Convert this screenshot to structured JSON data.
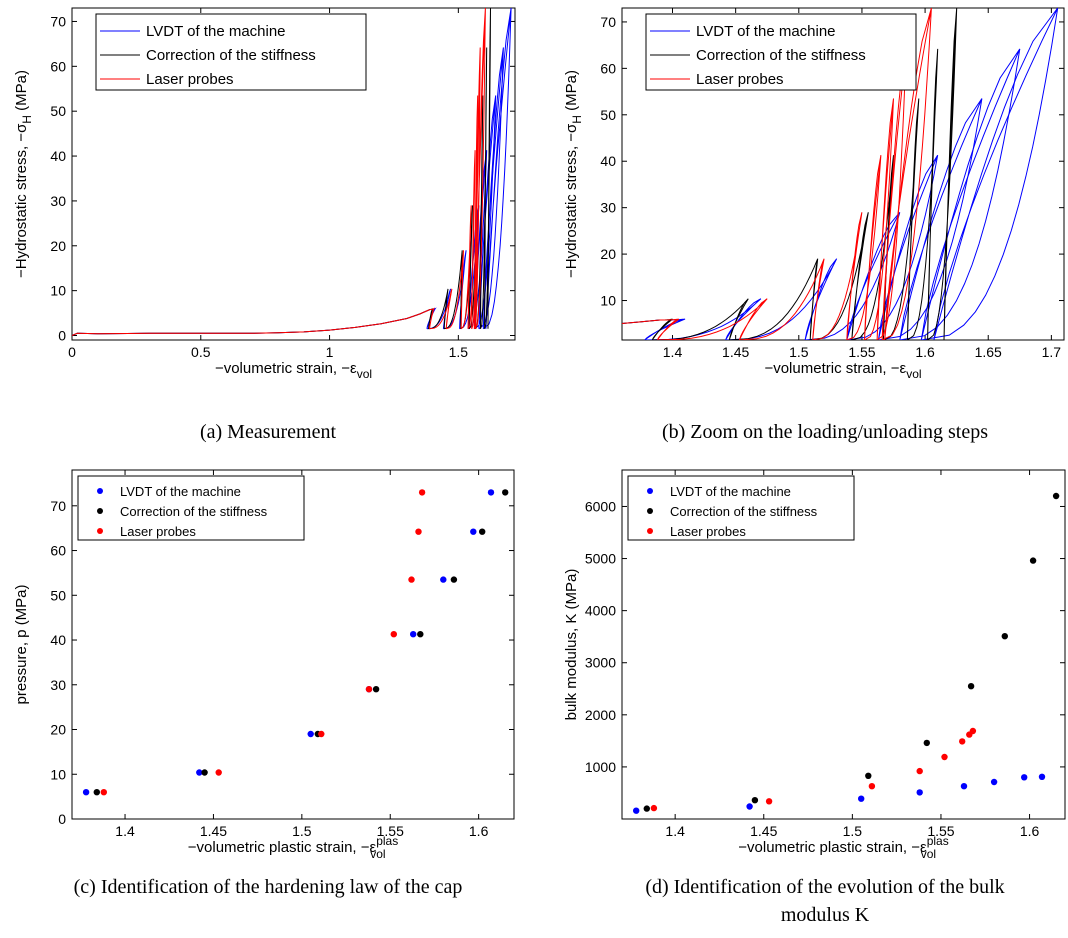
{
  "colors": {
    "lvdt": "#0000ff",
    "correction": "#000000",
    "laser": "#ff0000"
  },
  "chart_data": [
    {
      "id": "a",
      "type": "line",
      "caption": "(a)  Measurement",
      "xlabel": "−volumetric strain, −ε",
      "xlabel_sub": "vol",
      "ylabel": "−Hydrostatic stress, −σ",
      "ylabel_sub": "H",
      "ylabel_unit": " (MPa)",
      "xlim": [
        0,
        1.72
      ],
      "ylim": [
        -1,
        73
      ],
      "xticks": [
        0,
        0.5,
        1,
        1.5
      ],
      "xtick_labels": [
        "0",
        "0.5",
        "1",
        "1.5"
      ],
      "yticks": [
        0,
        10,
        20,
        30,
        40,
        50,
        60,
        70
      ],
      "ytick_labels": [
        "0",
        "10",
        "20",
        "30",
        "40",
        "50",
        "60",
        "70"
      ],
      "legend": [
        "LVDT of the machine",
        "Correction of the stiffness",
        "Laser probes"
      ],
      "legend_position": "top-left",
      "base_curve": {
        "x": [
          0,
          0.02,
          0.1,
          0.3,
          0.5,
          0.7,
          0.8,
          0.9,
          1.0,
          1.1,
          1.2,
          1.3,
          1.35,
          1.39
        ],
        "y": [
          0.0,
          0.5,
          0.4,
          0.5,
          0.5,
          0.5,
          0.6,
          0.8,
          1.2,
          1.8,
          2.6,
          3.8,
          4.8,
          5.8
        ]
      },
      "cycles": {
        "stress": [
          6,
          10.4,
          19,
          29,
          41.3,
          53.5,
          64.2,
          73
        ],
        "lvdt_peak": [
          1.41,
          1.47,
          1.53,
          1.58,
          1.61,
          1.645,
          1.675,
          1.705
        ],
        "lvdt_resid": [
          1.378,
          1.442,
          1.505,
          1.538,
          1.563,
          1.58,
          1.597,
          1.607
        ],
        "correction_peak": [
          1.4,
          1.46,
          1.515,
          1.555,
          1.575,
          1.595,
          1.61,
          1.625
        ],
        "correction_resid": [
          1.384,
          1.445,
          1.509,
          1.542,
          1.567,
          1.586,
          1.602,
          1.615
        ],
        "laser_peak": [
          1.405,
          1.475,
          1.52,
          1.55,
          1.565,
          1.575,
          1.585,
          1.605
        ],
        "laser_resid": [
          1.388,
          1.453,
          1.511,
          1.538,
          1.552,
          1.562,
          1.566,
          1.568
        ]
      }
    },
    {
      "id": "b",
      "type": "line",
      "caption": "(b)  Zoom on the loading/unloading steps",
      "xlabel": "−volumetric strain, −ε",
      "xlabel_sub": "vol",
      "ylabel": "−Hydrostatic stress, −σ",
      "ylabel_sub": "H",
      "ylabel_unit": " (MPa)",
      "xlim": [
        1.36,
        1.71
      ],
      "ylim": [
        1.5,
        73
      ],
      "xticks": [
        1.4,
        1.45,
        1.5,
        1.55,
        1.6,
        1.65,
        1.7
      ],
      "xtick_labels": [
        "1.4",
        "1.45",
        "1.5",
        "1.55",
        "1.6",
        "1.65",
        "1.7"
      ],
      "yticks": [
        10,
        20,
        30,
        40,
        50,
        60,
        70
      ],
      "ytick_labels": [
        "10",
        "20",
        "30",
        "40",
        "50",
        "60",
        "70"
      ],
      "legend": [
        "LVDT of the machine",
        "Correction of the stiffness",
        "Laser probes"
      ],
      "legend_position": "top-left"
    },
    {
      "id": "c",
      "type": "scatter",
      "caption": "(c)  Identification of the hardening law of the cap",
      "xlabel": "−volumetric plastic strain, −ε",
      "xlabel_sub": "vol",
      "xlabel_sup": "plas",
      "ylabel": "pressure, p (MPa)",
      "xlim": [
        1.37,
        1.62
      ],
      "ylim": [
        0,
        78
      ],
      "xticks": [
        1.4,
        1.45,
        1.5,
        1.55,
        1.6
      ],
      "xtick_labels": [
        "1.4",
        "1.45",
        "1.5",
        "1.55",
        "1.6"
      ],
      "yticks": [
        0,
        10,
        20,
        30,
        40,
        50,
        60,
        70
      ],
      "ytick_labels": [
        "0",
        "10",
        "20",
        "30",
        "40",
        "50",
        "60",
        "70"
      ],
      "legend": [
        "LVDT of the machine",
        "Correction of the stiffness",
        "Laser probes"
      ],
      "legend_position": "top-left",
      "series": [
        {
          "name": "LVDT of the machine",
          "color": "#0000ff",
          "x": [
            1.378,
            1.442,
            1.505,
            1.538,
            1.563,
            1.58,
            1.597,
            1.607
          ],
          "y": [
            6,
            10.4,
            19,
            29,
            41.3,
            53.5,
            64.2,
            73
          ]
        },
        {
          "name": "Correction of the stiffness",
          "color": "#000000",
          "x": [
            1.384,
            1.445,
            1.509,
            1.542,
            1.567,
            1.586,
            1.602,
            1.615
          ],
          "y": [
            6,
            10.4,
            19,
            29,
            41.3,
            53.5,
            64.2,
            73
          ]
        },
        {
          "name": "Laser probes",
          "color": "#ff0000",
          "x": [
            1.388,
            1.453,
            1.511,
            1.538,
            1.552,
            1.562,
            1.566,
            1.568
          ],
          "y": [
            6,
            10.4,
            19,
            29,
            41.3,
            53.5,
            64.2,
            73
          ]
        }
      ]
    },
    {
      "id": "d",
      "type": "scatter",
      "caption": "(d)  Identification of the evolution of the bulk",
      "caption_line2": "modulus K",
      "xlabel": "−volumetric plastic strain, −ε",
      "xlabel_sub": "vol",
      "xlabel_sup": "plas",
      "ylabel": "bulk modulus, K (MPa)",
      "xlim": [
        1.37,
        1.62
      ],
      "ylim": [
        0,
        6700
      ],
      "xticks": [
        1.4,
        1.45,
        1.5,
        1.55,
        1.6
      ],
      "xtick_labels": [
        "1.4",
        "1.45",
        "1.5",
        "1.55",
        "1.6"
      ],
      "yticks": [
        1000,
        2000,
        3000,
        4000,
        5000,
        6000
      ],
      "ytick_labels": [
        "1000",
        "2000",
        "3000",
        "4000",
        "5000",
        "6000"
      ],
      "legend": [
        "LVDT of the machine",
        "Correction of the stiffness",
        "Laser probes"
      ],
      "legend_position": "top-left",
      "series": [
        {
          "name": "LVDT of the machine",
          "color": "#0000ff",
          "x": [
            1.378,
            1.442,
            1.505,
            1.538,
            1.563,
            1.58,
            1.597,
            1.607
          ],
          "y": [
            160,
            240,
            390,
            510,
            630,
            710,
            800,
            810
          ]
        },
        {
          "name": "Correction of the stiffness",
          "color": "#000000",
          "x": [
            1.384,
            1.445,
            1.509,
            1.542,
            1.567,
            1.586,
            1.602,
            1.615
          ],
          "y": [
            200,
            360,
            830,
            1460,
            2550,
            3510,
            4960,
            6200
          ]
        },
        {
          "name": "Laser probes",
          "color": "#ff0000",
          "x": [
            1.388,
            1.453,
            1.511,
            1.538,
            1.552,
            1.562,
            1.566,
            1.568
          ],
          "y": [
            210,
            340,
            630,
            920,
            1190,
            1490,
            1620,
            1690
          ]
        }
      ]
    }
  ]
}
